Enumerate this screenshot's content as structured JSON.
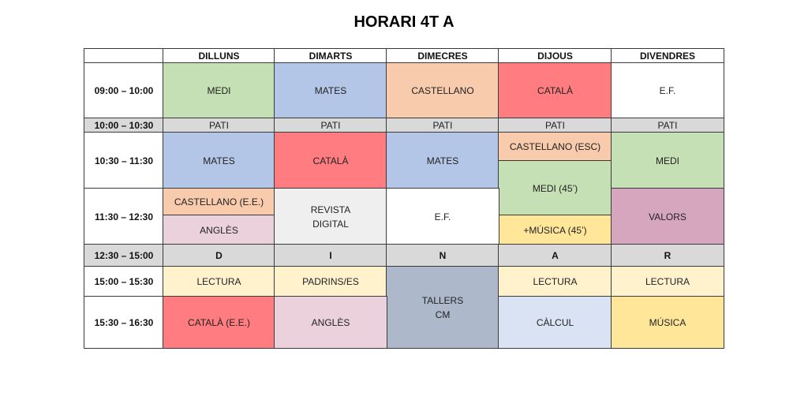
{
  "title": "HORARI 4T A",
  "days": [
    "DILLUNS",
    "DIMARTS",
    "DIMECRES",
    "DIJOUS",
    "DIVENDRES"
  ],
  "times": [
    "09:00 – 10:00",
    "10:00 – 10:30",
    "10:30 – 11:30",
    "11:30 – 12:30",
    "12:30 – 15:00",
    "15:00 – 15:30",
    "15:30 – 16:30"
  ],
  "colors": {
    "green": "#c5e0b4",
    "blue": "#b4c6e7",
    "peach": "#f8cbad",
    "red": "#ff7c80",
    "grey": "#d9d9d9",
    "lightgrey": "#efefef",
    "pink": "#ead1dc",
    "mauve": "#d5a6bd",
    "cream": "#fff2cc",
    "yellow": "#ffe699",
    "slate": "#adb9ca",
    "paleblue": "#dae3f3",
    "white": "#ffffff"
  },
  "cells": {
    "mon_0900": {
      "text": "MEDI",
      "color": "green"
    },
    "tue_0900": {
      "text": "MATES",
      "color": "blue"
    },
    "wed_0900": {
      "text": "CASTELLANO",
      "color": "peach"
    },
    "thu_0900": {
      "text": "CATALÀ",
      "color": "red"
    },
    "fri_0900": {
      "text": "E.F.",
      "color": "white"
    },
    "mon_1000": {
      "text": "PATI",
      "color": "grey"
    },
    "tue_1000": {
      "text": "PATI",
      "color": "grey"
    },
    "wed_1000": {
      "text": "PATI",
      "color": "grey"
    },
    "thu_1000": {
      "text": "PATI",
      "color": "grey"
    },
    "fri_1000": {
      "text": "PATI",
      "color": "grey"
    },
    "mon_1030": {
      "text": "MATES",
      "color": "blue"
    },
    "tue_1030": {
      "text": "CATALÀ",
      "color": "red"
    },
    "wed_1030": {
      "text": "MATES",
      "color": "blue"
    },
    "thu_1030": {
      "text": "CASTELLANO (ESC)",
      "color": "peach"
    },
    "thu_medi": {
      "text": "MEDI (45’)",
      "color": "green"
    },
    "thu_musica": {
      "text": "+MÚSICA (45’)",
      "color": "yellow"
    },
    "fri_1030": {
      "text": "MEDI",
      "color": "green"
    },
    "mon_1130a": {
      "text": "CASTELLANO (E.E.)",
      "color": "peach"
    },
    "mon_1130b": {
      "text": "ANGLÈS",
      "color": "pink"
    },
    "tue_1130": {
      "text": "REVISTA\nDIGITAL",
      "color": "lightgrey"
    },
    "wed_1130": {
      "text": "E.F.",
      "color": "white"
    },
    "fri_1130": {
      "text": "VALORS",
      "color": "mauve"
    },
    "mon_1230": {
      "text": "D",
      "color": "grey"
    },
    "tue_1230": {
      "text": "I",
      "color": "grey"
    },
    "wed_1230": {
      "text": "N",
      "color": "grey"
    },
    "thu_1230": {
      "text": "A",
      "color": "grey"
    },
    "fri_1230": {
      "text": "R",
      "color": "grey"
    },
    "mon_1500": {
      "text": "LECTURA",
      "color": "cream"
    },
    "tue_1500": {
      "text": "PADRINS/ES",
      "color": "cream"
    },
    "wed_1500": {
      "text": "TALLERS\nCM",
      "color": "slate"
    },
    "thu_1500": {
      "text": "LECTURA",
      "color": "cream"
    },
    "fri_1500": {
      "text": "LECTURA",
      "color": "cream"
    },
    "mon_1530": {
      "text": "CATALÀ (E.E.)",
      "color": "red"
    },
    "tue_1530": {
      "text": "ANGLÈS",
      "color": "pink"
    },
    "thu_1530": {
      "text": "CÀLCUL",
      "color": "paleblue"
    },
    "fri_1530": {
      "text": "MÚSICA",
      "color": "yellow"
    }
  }
}
